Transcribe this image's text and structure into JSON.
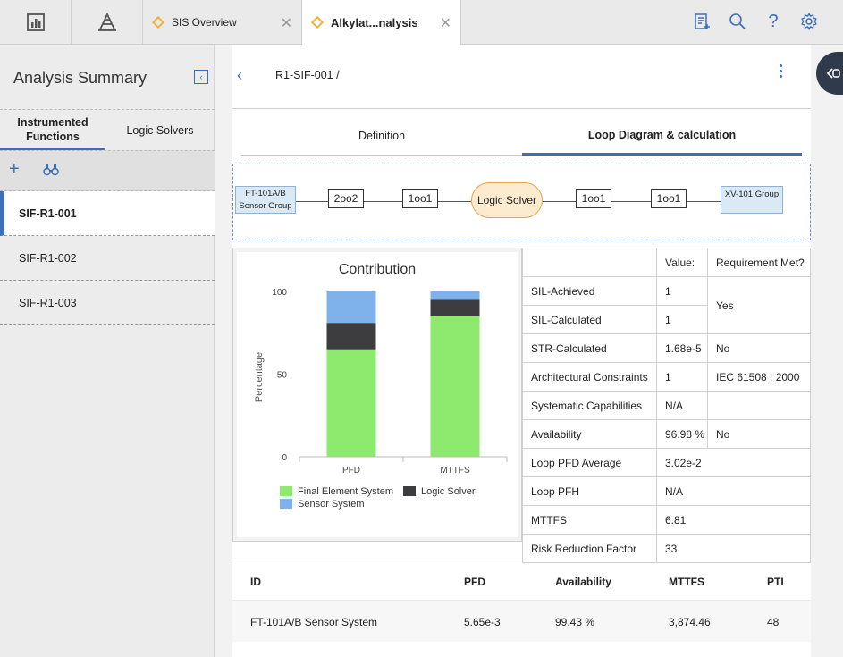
{
  "topbar": {
    "tabs": [
      {
        "label": "SIS Overview"
      },
      {
        "label": "Alkylat...nalysis"
      }
    ]
  },
  "left": {
    "title": "Analysis Summary",
    "tabs": [
      "Instrumented Functions",
      "Logic Solvers"
    ],
    "items": [
      "SIF-R1-001",
      "SIF-R1-002",
      "SIF-R1-003"
    ]
  },
  "main": {
    "breadcrumb": "R1-SIF-001 /",
    "tabs": [
      "Definition",
      "Loop Diagram & calculation"
    ],
    "loop": {
      "sensor_group": "FT-101A/B Sensor Group",
      "voting1": "2oo2",
      "voting2": "1oo1",
      "logic_solver": "Logic Solver",
      "voting3": "1oo1",
      "voting4": "1oo1",
      "final_group": "XV-101 Group"
    },
    "summary": {
      "headers": [
        "",
        "Value:",
        "Requirement Met?"
      ],
      "rows": [
        {
          "label": "SIL-Achieved",
          "value": "1"
        },
        {
          "label": "SIL-Calculated",
          "value": "1"
        },
        {
          "label": "STR-Calculated",
          "value": "1.68e-5",
          "req": "No"
        },
        {
          "label": "Architectural Constraints",
          "value": "1",
          "req": "IEC 61508 : 2000"
        },
        {
          "label": "Systematic Capabilities",
          "value": "N/A",
          "req": ""
        },
        {
          "label": "Availability",
          "value": "96.98 %",
          "req": "No"
        },
        {
          "label": "Loop PFD Average",
          "value": "3.02e-2"
        },
        {
          "label": "Loop PFH",
          "value": "N/A"
        },
        {
          "label": "MTTFS",
          "value": "6.81"
        },
        {
          "label": "Risk Reduction Factor",
          "value": "33"
        }
      ],
      "sil_req": "Yes"
    },
    "bottom": {
      "headers": [
        "ID",
        "PFD",
        "Availability",
        "MTTFS",
        "PTI"
      ],
      "row": [
        "FT-101A/B Sensor System",
        "5.65e-3",
        "99.43 %",
        "3,874.46",
        "48"
      ]
    }
  },
  "chart_data": {
    "type": "bar",
    "stacked": true,
    "title": "Contribution",
    "ylabel": "Percentage",
    "categories": [
      "PFD",
      "MTTFS"
    ],
    "yticks": [
      "0",
      "50",
      "100"
    ],
    "ylim": [
      0,
      100
    ],
    "series": [
      {
        "name": "Final Element System",
        "values": [
          65,
          85
        ],
        "color": "#8eea6f"
      },
      {
        "name": "Logic Solver",
        "values": [
          16,
          10
        ],
        "color": "#3d3d40"
      },
      {
        "name": "Sensor System",
        "values": [
          19,
          5
        ],
        "color": "#7fb2ea"
      }
    ],
    "legend": "bottom"
  }
}
